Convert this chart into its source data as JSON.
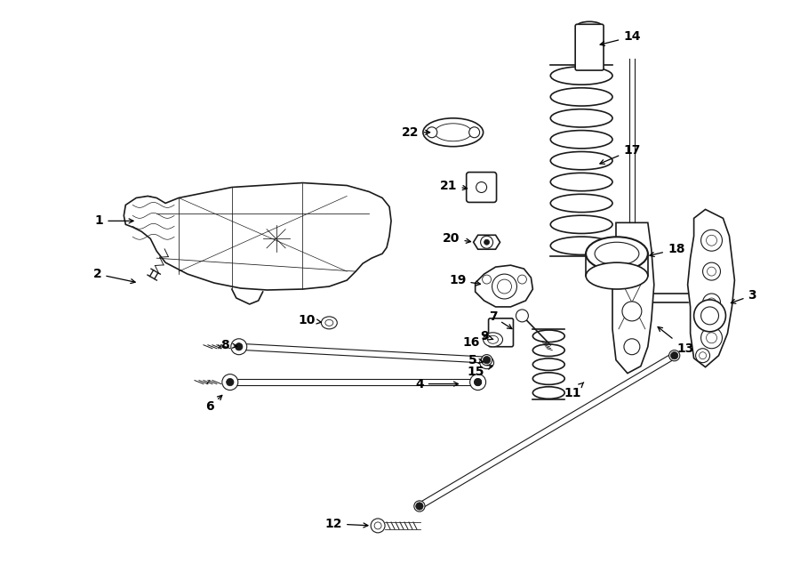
{
  "background_color": "#ffffff",
  "line_color": "#1a1a1a",
  "figsize": [
    9.0,
    6.61
  ],
  "dpi": 100,
  "label_positions": {
    "1": [
      95,
      248,
      148,
      248
    ],
    "2": [
      95,
      298,
      148,
      310
    ],
    "3": [
      845,
      330,
      805,
      330
    ],
    "4": [
      478,
      430,
      530,
      430
    ],
    "5": [
      538,
      402,
      558,
      408
    ],
    "6": [
      238,
      455,
      258,
      440
    ],
    "7": [
      558,
      358,
      575,
      372
    ],
    "8": [
      258,
      388,
      278,
      392
    ],
    "9": [
      550,
      378,
      562,
      385
    ],
    "10": [
      348,
      360,
      370,
      365
    ],
    "11": [
      648,
      440,
      660,
      420
    ],
    "12": [
      378,
      588,
      428,
      590
    ],
    "13": [
      770,
      395,
      740,
      388
    ],
    "14": [
      710,
      42,
      673,
      55
    ],
    "15": [
      540,
      415,
      570,
      408
    ],
    "16": [
      535,
      385,
      568,
      378
    ],
    "17": [
      710,
      168,
      672,
      175
    ],
    "18": [
      762,
      280,
      730,
      285
    ],
    "19": [
      520,
      315,
      562,
      322
    ],
    "20": [
      510,
      270,
      552,
      278
    ],
    "21": [
      510,
      208,
      548,
      215
    ],
    "22": [
      465,
      148,
      518,
      148
    ]
  }
}
